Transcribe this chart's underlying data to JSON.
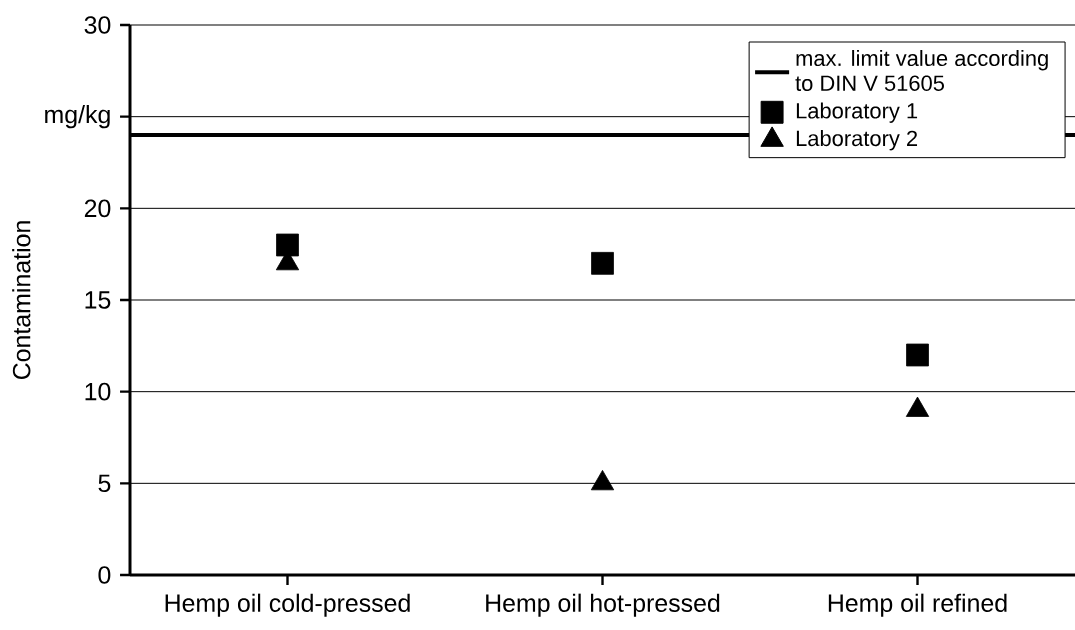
{
  "chart_data": {
    "type": "scatter",
    "ylabel": "Contamination",
    "categories": [
      "Hemp oil cold-pressed",
      "Hemp oil hot-pressed",
      "Hemp oil refined"
    ],
    "series": [
      {
        "name": "Laboratory 1",
        "color": "#000000",
        "marker": "square",
        "values": [
          18,
          17,
          12
        ]
      },
      {
        "name": "Laboratory 2",
        "color": "#000000",
        "marker": "triangle",
        "values": [
          17,
          5,
          9
        ]
      }
    ],
    "ylim": [
      0,
      30
    ],
    "yticks": [
      0,
      5,
      10,
      15,
      20,
      {
        "value": 25,
        "label": "mg/kg"
      },
      30
    ],
    "ref_lines": [
      {
        "axis": "y",
        "value": 24,
        "label": "max. limit value according to DIN V 51605",
        "color": "#000000"
      }
    ],
    "grid": "y",
    "legend": "top right"
  }
}
